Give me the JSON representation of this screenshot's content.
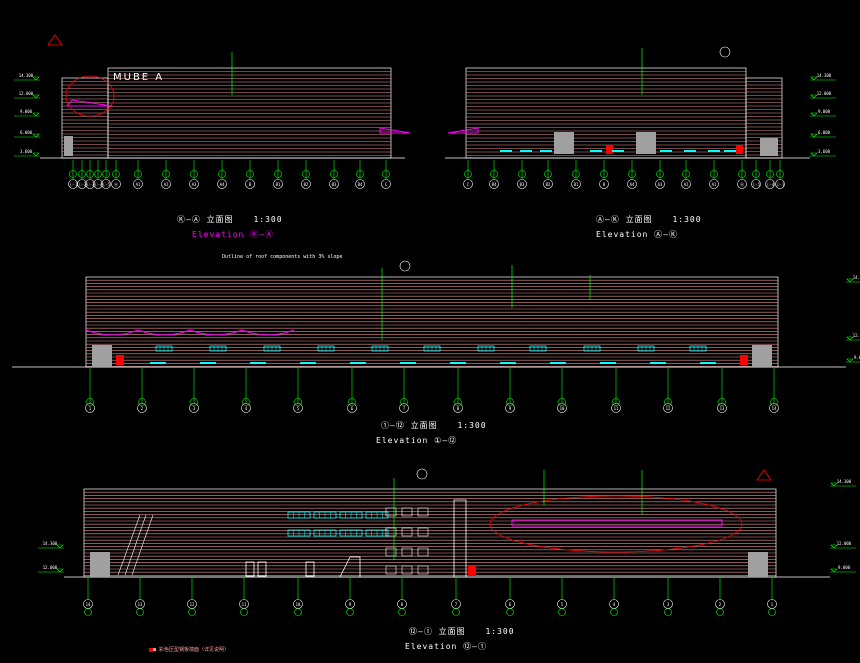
{
  "drawing": {
    "background": "#000000",
    "colors": {
      "line": "#ff9f9f",
      "outline": "#ffffff",
      "leader": "#00ff00",
      "grid_axis": "#00ff00",
      "cloud": "#ff0000",
      "magenta": "#ff00ff",
      "cyan": "#00ffff",
      "red_block": "#ff0000",
      "gray_block": "#a0a0a0"
    },
    "brand_text": "MUBE A"
  },
  "elevations": [
    {
      "id": "elev-a",
      "caption_code": "Ⓚ—Ⓐ 立面图",
      "caption_scale": "1:300",
      "caption_en": "Elevation Ⓚ—Ⓐ",
      "grid_labels": [
        "Ⓛ-1",
        "Ⓛ-2",
        "Ⓛ-3",
        "Ⓛ-4",
        "Ⓛ-5",
        "Ⓐ",
        "A1",
        "A2",
        "A3",
        "A4",
        "B",
        "B1",
        "B2",
        "B3",
        "B4",
        "C"
      ]
    },
    {
      "id": "elev-b",
      "caption_code": "Ⓐ—Ⓚ 立面图",
      "caption_scale": "1:300",
      "caption_en": "Elevation Ⓐ—Ⓚ",
      "grid_labels": [
        "C",
        "B4",
        "B3",
        "B2",
        "B1",
        "B",
        "A4",
        "A3",
        "A2",
        "A1",
        "Ⓐ",
        "Ⓛ-5",
        "Ⓛ-4",
        "Ⓛ-1"
      ]
    },
    {
      "id": "elev-c",
      "caption_code": "①—⑫ 立面图",
      "caption_scale": "1:300",
      "caption_en": "Elevation ①—⑫",
      "grid_labels": [
        "1",
        "2",
        "3",
        "4",
        "5",
        "6",
        "7",
        "8",
        "9",
        "10",
        "11",
        "12",
        "13",
        "14"
      ]
    },
    {
      "id": "elev-d",
      "caption_code": "⑫—① 立面图",
      "caption_scale": "1:300",
      "caption_en": "Elevation ⑫—①",
      "grid_labels": [
        "14",
        "13",
        "12",
        "11",
        "10",
        "9",
        "8",
        "7",
        "6",
        "5",
        "4",
        "3",
        "2",
        "1"
      ]
    }
  ],
  "level_marks": [
    "14.300",
    "12.000",
    "9.000",
    "6.000",
    "3.600",
    "±0.000",
    "-0.300",
    "20.500"
  ],
  "note_top": "Outline of roof components with 3% slope",
  "note_bottom_legend": "■ 彩色压型钢板墙面（详见说明）"
}
